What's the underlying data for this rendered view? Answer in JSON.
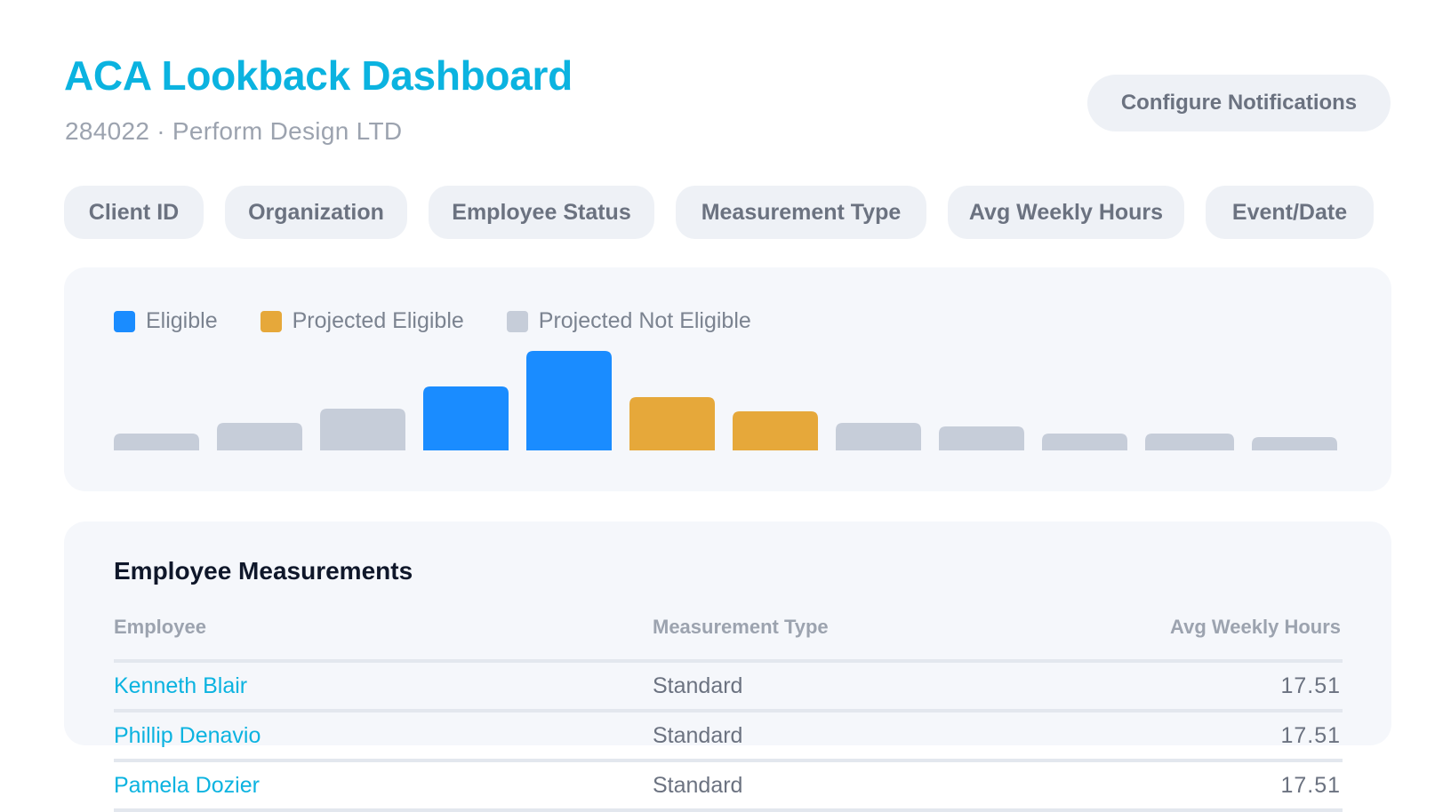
{
  "header": {
    "title": "ACA Lookback Dashboard",
    "client_id": "284022",
    "separator": "·",
    "organization": "Perform Design LTD",
    "configure_label": "Configure Notifications"
  },
  "filters": [
    "Client ID",
    "Organization",
    "Employee Status",
    "Measurement Type",
    "Avg Weekly Hours",
    "Event/Date"
  ],
  "chart_data": {
    "type": "bar",
    "series": [
      {
        "name": "Eligible",
        "color": "#1a8cff"
      },
      {
        "name": "Projected Eligible",
        "color": "#e6a83a"
      },
      {
        "name": "Projected Not Eligible",
        "color": "#c6cdd9"
      }
    ],
    "values": [
      19,
      31,
      47,
      72,
      112,
      60,
      44,
      31,
      27,
      19,
      19,
      15
    ],
    "categories_series": [
      2,
      2,
      2,
      0,
      0,
      1,
      1,
      2,
      2,
      2,
      2,
      2
    ],
    "grid": false,
    "legend": "top-left"
  },
  "table": {
    "title": "Employee Measurements",
    "columns": [
      "Employee",
      "Measurement Type",
      "Avg Weekly Hours"
    ],
    "rows": [
      {
        "employee": "Kenneth Blair",
        "type": "Standard",
        "hours": "17.51"
      },
      {
        "employee": "Phillip Denavio",
        "type": "Standard",
        "hours": "17.51"
      },
      {
        "employee": "Pamela Dozier",
        "type": "Standard",
        "hours": "17.51"
      }
    ]
  }
}
